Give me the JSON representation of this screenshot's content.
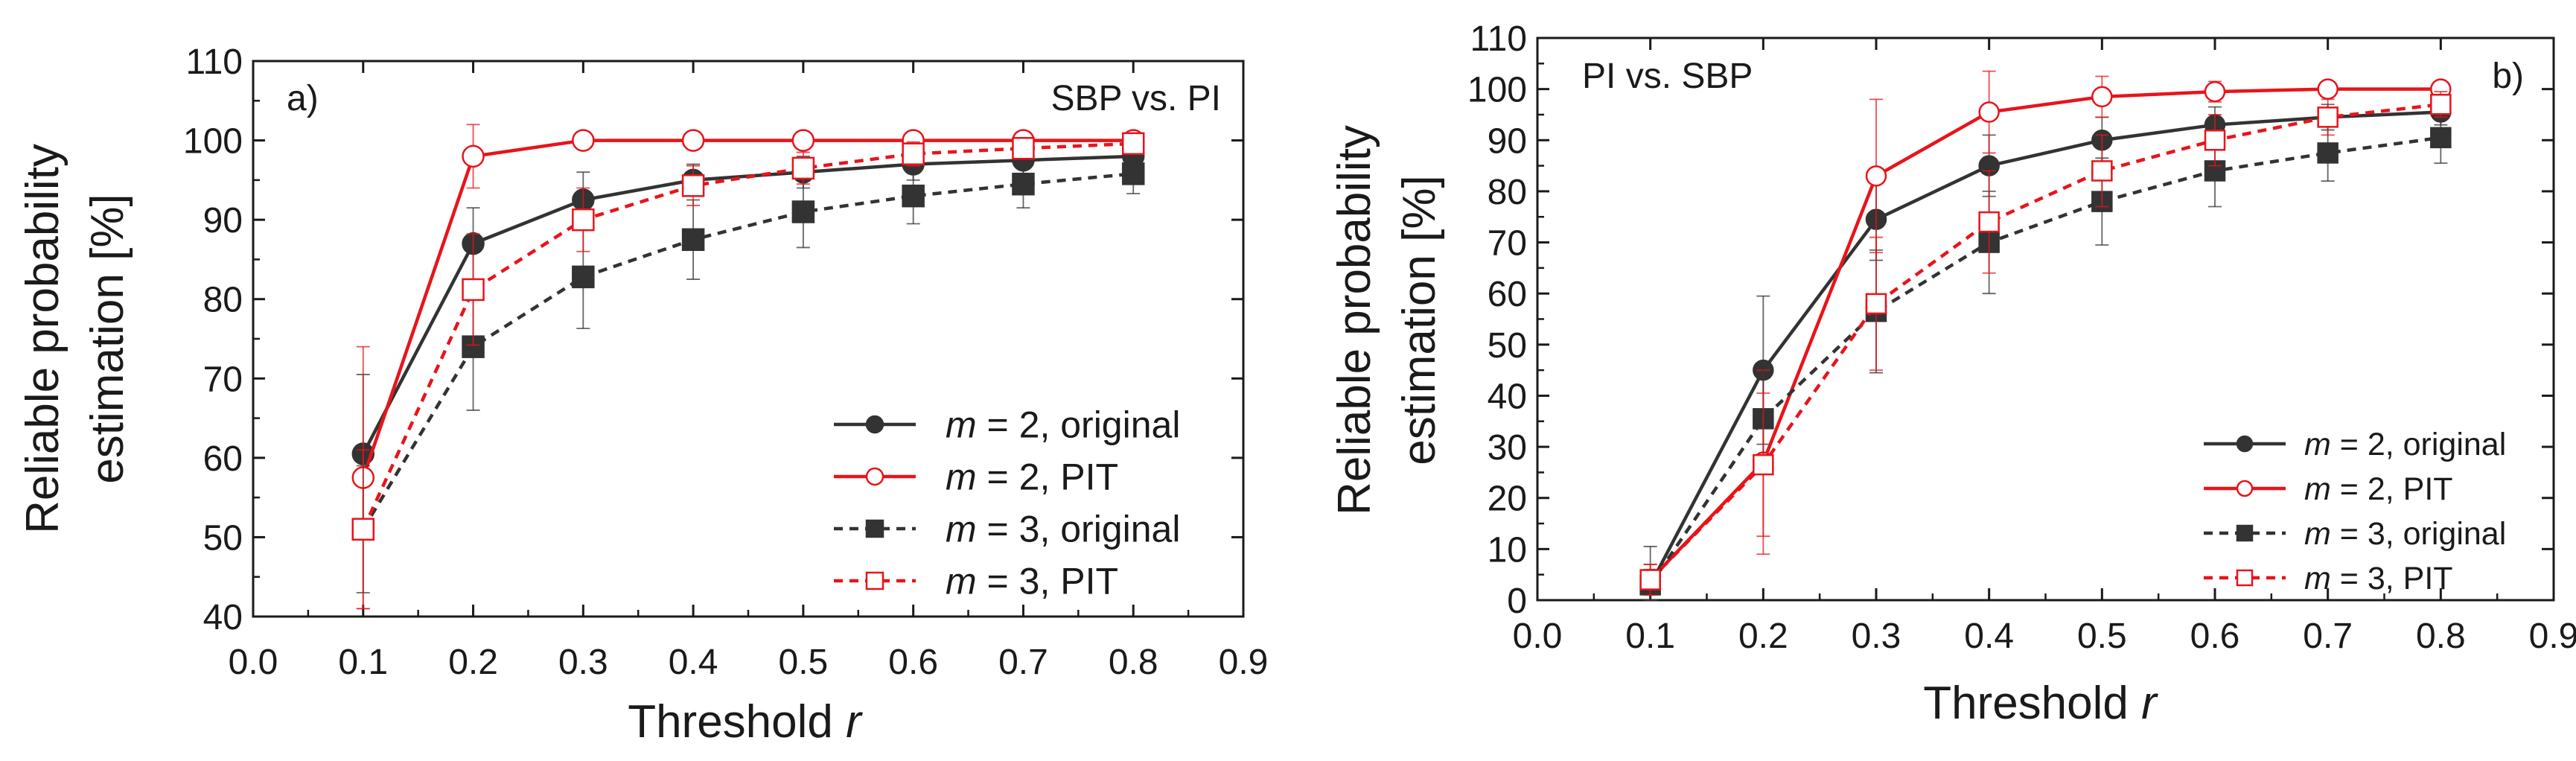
{
  "chart_data": [
    {
      "type": "line",
      "panel_label": "a)",
      "title": "SBP vs. PI",
      "xlabel": "Threshold",
      "xlabel_var": "r",
      "ylabel_line1": "Reliable probability",
      "ylabel_line2": "estimation [%]",
      "xlim": [
        0.0,
        0.9
      ],
      "ylim": [
        40,
        110
      ],
      "xticks": [
        "0.0",
        "0.1",
        "0.2",
        "0.3",
        "0.4",
        "0.5",
        "0.6",
        "0.7",
        "0.8",
        "0.9"
      ],
      "yticks": [
        "40",
        "50",
        "60",
        "70",
        "80",
        "90",
        "100",
        "110"
      ],
      "legend_position": "bottom-right",
      "x": [
        0.1,
        0.2,
        0.3,
        0.4,
        0.5,
        0.6,
        0.7,
        0.8
      ],
      "series": [
        {
          "name_var": "m",
          "name_rest": " = 2, original",
          "color": "#333333",
          "dash": "solid",
          "marker": "circle-filled",
          "values": [
            60.5,
            87,
            92.5,
            95,
            96,
            97,
            97.5,
            98
          ],
          "errors": [
            10,
            4.5,
            3.5,
            2,
            2,
            2,
            2,
            2
          ]
        },
        {
          "name_var": "m",
          "name_rest": " = 2, PIT",
          "color": "#e8141a",
          "dash": "solid",
          "marker": "circle-open",
          "values": [
            57.5,
            98,
            100,
            100,
            100,
            100,
            100,
            100
          ],
          "errors": [
            16.5,
            4,
            1,
            0.5,
            0.5,
            0.5,
            0.5,
            0.5
          ]
        },
        {
          "name_var": "m",
          "name_rest": " = 3, original",
          "color": "#333333",
          "dash": "dashed",
          "marker": "square-filled",
          "values": [
            51,
            74,
            82.8,
            87.5,
            91,
            93,
            94.5,
            95.8
          ],
          "errors": [
            8,
            8,
            6.5,
            5,
            4.5,
            3.5,
            3,
            2.5
          ]
        },
        {
          "name_var": "m",
          "name_rest": " = 3, PIT",
          "color": "#e8141a",
          "dash": "dashed",
          "marker": "square-open",
          "values": [
            51,
            81.2,
            90,
            94.3,
            96.5,
            98.3,
            99,
            99.6
          ],
          "errors": [
            10,
            7,
            4,
            2.5,
            2,
            1.5,
            1,
            0.5
          ]
        }
      ]
    },
    {
      "type": "line",
      "panel_label": "b)",
      "title": "PI vs. SBP",
      "xlabel": "Threshold",
      "xlabel_var": "r",
      "ylabel_line1": "Reliable probability",
      "ylabel_line2": "estimation [%]",
      "xlim": [
        0.0,
        0.9
      ],
      "ylim": [
        0,
        110
      ],
      "xticks": [
        "0.0",
        "0.1",
        "0.2",
        "0.3",
        "0.4",
        "0.5",
        "0.6",
        "0.7",
        "0.8",
        "0.9"
      ],
      "yticks": [
        "0",
        "10",
        "20",
        "30",
        "40",
        "50",
        "60",
        "70",
        "80",
        "90",
        "100",
        "110"
      ],
      "legend_position": "bottom-right",
      "x": [
        0.1,
        0.2,
        0.3,
        0.4,
        0.5,
        0.6,
        0.7,
        0.8
      ],
      "series": [
        {
          "name_var": "m",
          "name_rest": " = 2, original",
          "color": "#333333",
          "dash": "solid",
          "marker": "circle-filled",
          "values": [
            3,
            45,
            74.5,
            85,
            90,
            93,
            94.5,
            95.5
          ],
          "errors": [
            7.5,
            14.5,
            8,
            6,
            4.5,
            3.5,
            2.5,
            2.5
          ]
        },
        {
          "name_var": "m",
          "name_rest": " = 2, PIT",
          "color": "#e8141a",
          "dash": "solid",
          "marker": "circle-open",
          "values": [
            4,
            27,
            83,
            95.5,
            98.5,
            99.5,
            100,
            100
          ],
          "errors": [
            3,
            18,
            15,
            8,
            4,
            2,
            1,
            0.5
          ]
        },
        {
          "name_var": "m",
          "name_rest": " = 3, original",
          "color": "#333333",
          "dash": "dashed",
          "marker": "square-filled",
          "values": [
            3,
            35.5,
            56.5,
            70,
            78,
            84,
            87.5,
            90.5
          ],
          "errors": [
            3,
            10.5,
            12,
            10,
            8.5,
            7,
            5.5,
            5
          ]
        },
        {
          "name_var": "m",
          "name_rest": " = 3, PIT",
          "color": "#e8141a",
          "dash": "dashed",
          "marker": "square-open",
          "values": [
            4,
            26.5,
            58,
            74,
            84,
            90,
            94.5,
            97
          ],
          "errors": [
            3,
            14,
            13,
            10,
            7,
            5,
            3.5,
            2.5
          ]
        }
      ]
    }
  ]
}
